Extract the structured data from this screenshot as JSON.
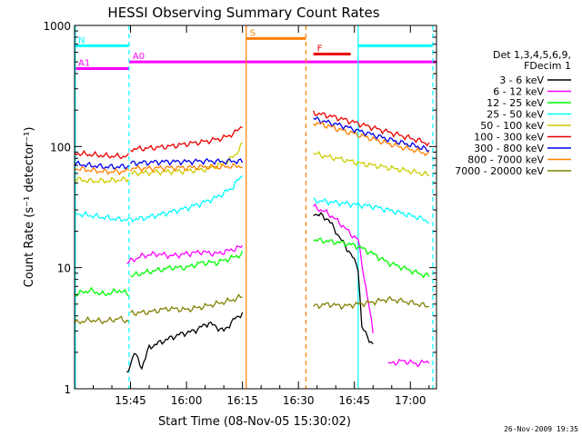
{
  "colors": {
    "black": "#000000",
    "magenta": "#ff00ff",
    "green": "#00ff00",
    "cyan": "#00ffff",
    "yellow": "#cccc00",
    "red": "#ee0000",
    "blue": "#0000ee",
    "orange": "#ff8000",
    "olive": "#808000"
  },
  "chart_data": {
    "type": "line",
    "title": "HESSI Observing Summary Count Rates",
    "xlabel": "Start Time (08-Nov-05 15:30:02)",
    "ylabel": "Count Rate (s⁻¹ detector⁻¹)",
    "yscale": "log",
    "ylim": [
      1,
      1000
    ],
    "xlim_minutes": [
      0,
      97
    ],
    "x_ticks": [
      {
        "label": "15:45",
        "minute": 15
      },
      {
        "label": "16:00",
        "minute": 30
      },
      {
        "label": "16:15",
        "minute": 45
      },
      {
        "label": "16:30",
        "minute": 60
      },
      {
        "label": "16:45",
        "minute": 75
      },
      {
        "label": "17:00",
        "minute": 90
      }
    ],
    "y_ticks": [
      {
        "label": "1",
        "value": 1
      },
      {
        "label": "10",
        "value": 10
      },
      {
        "label": "100",
        "value": 100
      },
      {
        "label": "1000",
        "value": 1000
      }
    ],
    "legend_header": [
      "Det 1,3,4,5,6,9,",
      "FDecim 1"
    ],
    "legend_position": "right",
    "timestamp": "26-Nov-2009 19:35",
    "flags": [
      {
        "label": "N",
        "color": "cyan",
        "value": 680,
        "segments": [
          [
            0,
            14.5
          ],
          [
            76,
            96
          ]
        ]
      },
      {
        "label": "A0",
        "color": "magenta",
        "value": 500,
        "segments": [
          [
            14.6,
            97
          ]
        ]
      },
      {
        "label": "A1",
        "color": "magenta",
        "value": 440,
        "segments": [
          [
            0,
            14.5
          ]
        ]
      },
      {
        "label": "S",
        "color": "orange",
        "value": 780,
        "segments": [
          [
            46,
            62
          ]
        ]
      },
      {
        "label": "F",
        "color": "red",
        "value": 580,
        "segments": [
          [
            64,
            74
          ]
        ]
      }
    ],
    "vlines": [
      {
        "minute": 0.2,
        "color": "cyan",
        "dash": false
      },
      {
        "minute": 14.6,
        "color": "cyan",
        "dash": true
      },
      {
        "minute": 46,
        "color": "orange",
        "dash": false
      },
      {
        "minute": 62,
        "color": "orange",
        "dash": true
      },
      {
        "minute": 76,
        "color": "cyan",
        "dash": false
      },
      {
        "minute": 96,
        "color": "cyan",
        "dash": true
      }
    ],
    "series": [
      {
        "name": "3 - 6 keV",
        "color": "black",
        "segments": [
          [
            [
              14,
              1.3
            ],
            [
              16,
              2.0
            ],
            [
              18,
              1.5
            ],
            [
              20,
              2.2
            ],
            [
              24,
              2.5
            ],
            [
              28,
              2.8
            ],
            [
              32,
              3.0
            ],
            [
              36,
              3.5
            ],
            [
              40,
              3.0
            ],
            [
              43,
              3.8
            ],
            [
              45,
              4.2
            ]
          ],
          [
            [
              64,
              28
            ],
            [
              66,
              27
            ],
            [
              68,
              25
            ],
            [
              70,
              20
            ],
            [
              72,
              16
            ],
            [
              74,
              13
            ],
            [
              76,
              10
            ],
            [
              77,
              3.2
            ],
            [
              80,
              2.3
            ]
          ]
        ]
      },
      {
        "name": "6 - 12 keV",
        "color": "magenta",
        "segments": [
          [
            [
              14,
              11
            ],
            [
              18,
              12.5
            ],
            [
              22,
              13
            ],
            [
              26,
              12.5
            ],
            [
              30,
              13
            ],
            [
              34,
              13.5
            ],
            [
              38,
              13
            ],
            [
              42,
              14
            ],
            [
              45,
              15
            ]
          ],
          [
            [
              64,
              32
            ],
            [
              66,
              30
            ],
            [
              68,
              28
            ],
            [
              70,
              25
            ],
            [
              72,
              22
            ],
            [
              74,
              19
            ],
            [
              76,
              17
            ],
            [
              77,
              11
            ],
            [
              78,
              7
            ],
            [
              80,
              3
            ]
          ],
          [
            [
              84,
              1.6
            ],
            [
              88,
              1.7
            ],
            [
              92,
              1.6
            ],
            [
              95,
              1.7
            ]
          ]
        ]
      },
      {
        "name": "12 - 25 keV",
        "color": "green",
        "segments": [
          [
            [
              0,
              6
            ],
            [
              4,
              6.5
            ],
            [
              8,
              6
            ],
            [
              12,
              6.5
            ],
            [
              14.5,
              6
            ]
          ],
          [
            [
              15,
              8.5
            ],
            [
              18,
              9
            ],
            [
              22,
              9.5
            ],
            [
              26,
              10
            ],
            [
              30,
              10
            ],
            [
              34,
              11
            ],
            [
              38,
              11
            ],
            [
              42,
              12
            ],
            [
              45,
              13
            ]
          ],
          [
            [
              64,
              17
            ],
            [
              68,
              16.5
            ],
            [
              72,
              16
            ],
            [
              76,
              15
            ],
            [
              80,
              13
            ],
            [
              84,
              11
            ],
            [
              88,
              10
            ],
            [
              92,
              9
            ],
            [
              95,
              8.5
            ]
          ]
        ]
      },
      {
        "name": "25 - 50 keV",
        "color": "cyan",
        "segments": [
          [
            [
              0,
              28
            ],
            [
              4,
              27
            ],
            [
              8,
              26
            ],
            [
              12,
              25
            ],
            [
              14.5,
              25
            ]
          ],
          [
            [
              15,
              25
            ],
            [
              18,
              25.5
            ],
            [
              22,
              27
            ],
            [
              26,
              29
            ],
            [
              30,
              31
            ],
            [
              34,
              34
            ],
            [
              38,
              38
            ],
            [
              42,
              45
            ],
            [
              45,
              58
            ]
          ],
          [
            [
              64,
              36
            ],
            [
              68,
              35
            ],
            [
              72,
              34
            ],
            [
              76,
              33
            ],
            [
              80,
              32
            ],
            [
              84,
              30
            ],
            [
              88,
              28
            ],
            [
              92,
              26
            ],
            [
              95,
              24
            ]
          ]
        ]
      },
      {
        "name": "50 - 100 keV",
        "color": "yellow",
        "segments": [
          [
            [
              0,
              54
            ],
            [
              4,
              52
            ],
            [
              8,
              52
            ],
            [
              12,
              53
            ],
            [
              14.5,
              54
            ]
          ],
          [
            [
              15,
              60
            ],
            [
              20,
              61
            ],
            [
              25,
              62
            ],
            [
              30,
              63
            ],
            [
              35,
              65
            ],
            [
              40,
              72
            ],
            [
              43,
              85
            ],
            [
              45,
              105
            ]
          ],
          [
            [
              64,
              88
            ],
            [
              68,
              82
            ],
            [
              72,
              78
            ],
            [
              76,
              73
            ],
            [
              80,
              70
            ],
            [
              84,
              67
            ],
            [
              88,
              64
            ],
            [
              92,
              61
            ],
            [
              95,
              58
            ]
          ]
        ]
      },
      {
        "name": "100 - 300 keV",
        "color": "red",
        "segments": [
          [
            [
              0,
              88
            ],
            [
              4,
              86
            ],
            [
              8,
              84
            ],
            [
              12,
              83
            ],
            [
              14.5,
              83
            ]
          ],
          [
            [
              15,
              95
            ],
            [
              20,
              97
            ],
            [
              25,
              100
            ],
            [
              30,
              105
            ],
            [
              35,
              110
            ],
            [
              40,
              118
            ],
            [
              43,
              130
            ],
            [
              45,
              150
            ]
          ],
          [
            [
              64,
              190
            ],
            [
              68,
              180
            ],
            [
              72,
              168
            ],
            [
              76,
              155
            ],
            [
              80,
              143
            ],
            [
              84,
              132
            ],
            [
              88,
              122
            ],
            [
              92,
              113
            ],
            [
              95,
              105
            ]
          ]
        ]
      },
      {
        "name": "300 - 800 keV",
        "color": "blue",
        "segments": [
          [
            [
              0,
              72
            ],
            [
              4,
              70
            ],
            [
              8,
              68
            ],
            [
              12,
              68
            ],
            [
              14.5,
              69
            ]
          ],
          [
            [
              15,
              73
            ],
            [
              20,
              74
            ],
            [
              25,
              75
            ],
            [
              30,
              75
            ],
            [
              35,
              76
            ],
            [
              40,
              75
            ],
            [
              43,
              76
            ],
            [
              45,
              75
            ]
          ],
          [
            [
              64,
              170
            ],
            [
              68,
              158
            ],
            [
              72,
              148
            ],
            [
              76,
              135
            ],
            [
              80,
              125
            ],
            [
              84,
              115
            ],
            [
              88,
              107
            ],
            [
              92,
              100
            ],
            [
              95,
              93
            ]
          ]
        ]
      },
      {
        "name": "800 - 7000 keV",
        "color": "orange",
        "segments": [
          [
            [
              0,
              66
            ],
            [
              4,
              64
            ],
            [
              8,
              62
            ],
            [
              12,
              62
            ],
            [
              14.5,
              63
            ]
          ],
          [
            [
              15,
              66
            ],
            [
              20,
              66
            ],
            [
              25,
              67
            ],
            [
              30,
              67
            ],
            [
              35,
              68
            ],
            [
              40,
              68
            ],
            [
              43,
              69
            ],
            [
              45,
              69
            ]
          ],
          [
            [
              64,
              158
            ],
            [
              68,
              148
            ],
            [
              72,
              135
            ],
            [
              76,
              125
            ],
            [
              80,
              115
            ],
            [
              84,
              106
            ],
            [
              88,
              98
            ],
            [
              92,
              92
            ],
            [
              95,
              86
            ]
          ]
        ]
      },
      {
        "name": "7000 - 20000 keV",
        "color": "olive",
        "segments": [
          [
            [
              0,
              3.5
            ],
            [
              4,
              3.7
            ],
            [
              8,
              3.6
            ],
            [
              12,
              3.8
            ],
            [
              14.5,
              3.6
            ]
          ],
          [
            [
              15,
              4.2
            ],
            [
              20,
              4.3
            ],
            [
              25,
              4.6
            ],
            [
              30,
              4.5
            ],
            [
              35,
              4.8
            ],
            [
              40,
              5.2
            ],
            [
              43,
              5.5
            ],
            [
              45,
              5.8
            ]
          ],
          [
            [
              64,
              4.8
            ],
            [
              68,
              5.0
            ],
            [
              72,
              4.8
            ],
            [
              76,
              5.0
            ],
            [
              80,
              5.2
            ],
            [
              84,
              5.5
            ],
            [
              88,
              5.3
            ],
            [
              92,
              5.0
            ],
            [
              95,
              4.8
            ]
          ]
        ]
      }
    ]
  }
}
